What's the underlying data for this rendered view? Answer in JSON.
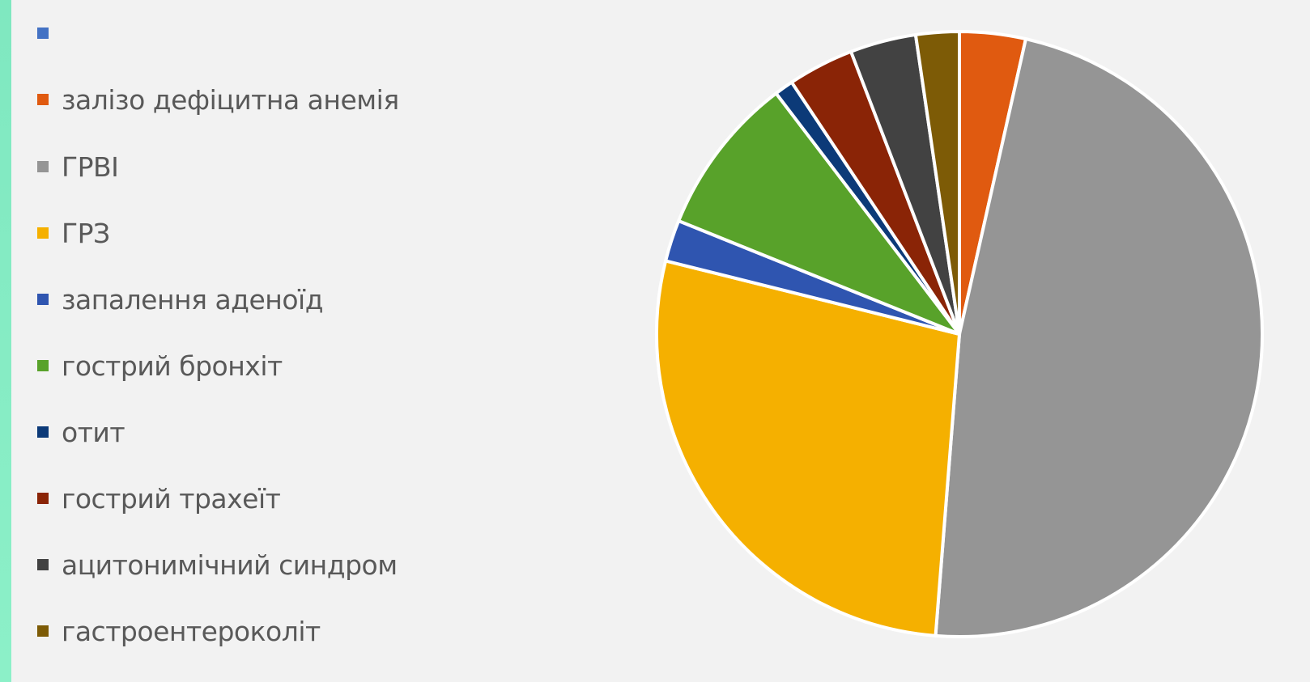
{
  "chart_data": {
    "type": "pie",
    "legend_position": "left",
    "start_angle_deg": 0,
    "direction": "clockwise",
    "slices": [
      {
        "label": "",
        "value": 0.0,
        "color": "#4472c4"
      },
      {
        "label": "залізо дефіцитна анемія",
        "value": 3.5,
        "color": "#e05a10"
      },
      {
        "label": "ГРВІ",
        "value": 47.5,
        "color": "#959595"
      },
      {
        "label": "ГРЗ",
        "value": 27.5,
        "color": "#f5b000"
      },
      {
        "label": "запалення аденоїд",
        "value": 2.2,
        "color": "#2f55b0"
      },
      {
        "label": "гострий бронхіт",
        "value": 8.5,
        "color": "#58a22a"
      },
      {
        "label": "отит",
        "value": 1.0,
        "color": "#0c3a78"
      },
      {
        "label": "гострий трахеїт",
        "value": 3.5,
        "color": "#8a2406"
      },
      {
        "label": "ацитонимічний синдром",
        "value": 3.5,
        "color": "#424242"
      },
      {
        "label": "гастроентероколіт",
        "value": 2.3,
        "color": "#7d5b06"
      }
    ]
  }
}
